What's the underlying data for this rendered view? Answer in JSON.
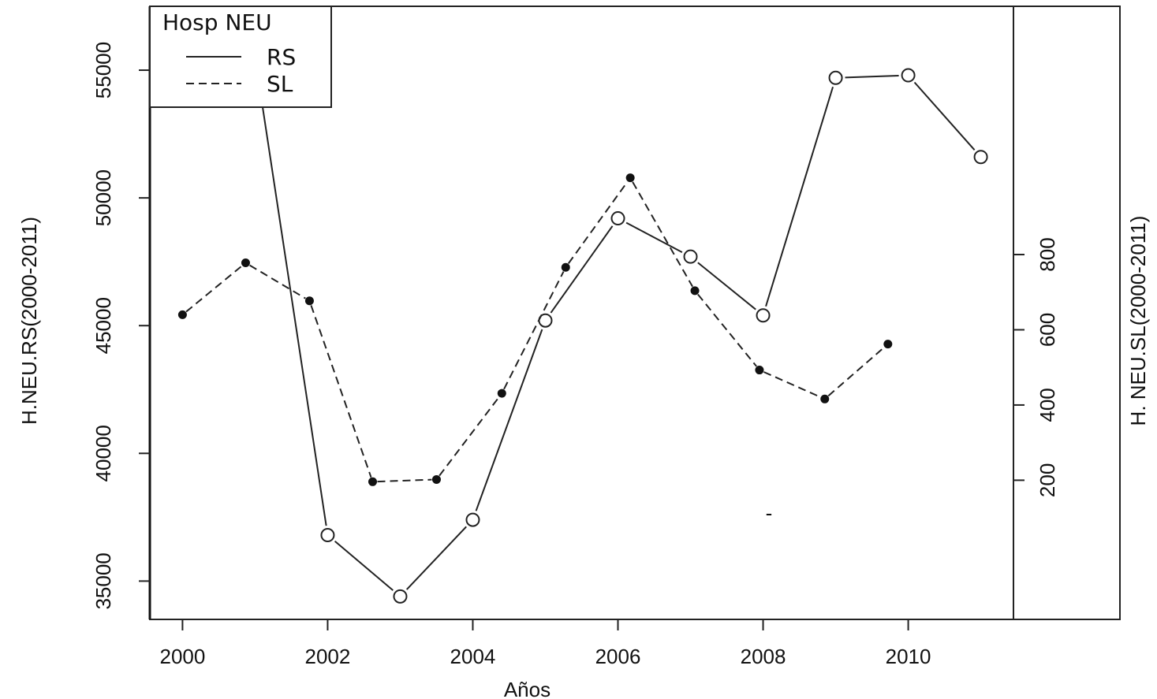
{
  "chart_data": {
    "type": "line",
    "xlabel": "Años",
    "ylabel_left": "H.NEU.RS(2000-2011)",
    "ylabel_right": "H. NEU.SL(2000-2011)",
    "xlim": [
      1999.55,
      2011.45
    ],
    "ylim_left": [
      33500,
      57500
    ],
    "ylim_right": [
      -170,
      1460
    ],
    "x_ticks": [
      "2000",
      "2002",
      "2004",
      "2006",
      "2008",
      "2010"
    ],
    "y_ticks_left": [
      "35000",
      "40000",
      "45000",
      "50000",
      "55000"
    ],
    "y_ticks_right": [
      "200",
      "400",
      "600",
      "800"
    ],
    "legend": {
      "title": "Hosp NEU",
      "position": "top-left",
      "entries": [
        {
          "label": "RS",
          "line": "solid"
        },
        {
          "label": "SL",
          "line": "dashed"
        }
      ]
    },
    "series": [
      {
        "name": "RS",
        "axis": "left",
        "line": "solid",
        "marker": "open-circle",
        "x": [
          2001,
          2002,
          2003,
          2004,
          2005,
          2006,
          2007,
          2008,
          2009,
          2010,
          2011
        ],
        "y": [
          55500,
          36800,
          34400,
          37400,
          45200,
          49200,
          47700,
          45400,
          54700,
          54800,
          51600
        ]
      },
      {
        "name": "SL",
        "axis": "right",
        "line": "dashed",
        "marker": "filled-circle",
        "x": [
          2000,
          2000.87,
          2001.75,
          2002.62,
          2003.5,
          2004.4,
          2005.28,
          2006.17,
          2007.06,
          2007.95,
          2008.85,
          2009.72
        ],
        "y": [
          640,
          778,
          677,
          196,
          202,
          431,
          766,
          1004,
          704,
          493,
          416,
          562
        ]
      }
    ],
    "annotations": [
      "-"
    ]
  }
}
